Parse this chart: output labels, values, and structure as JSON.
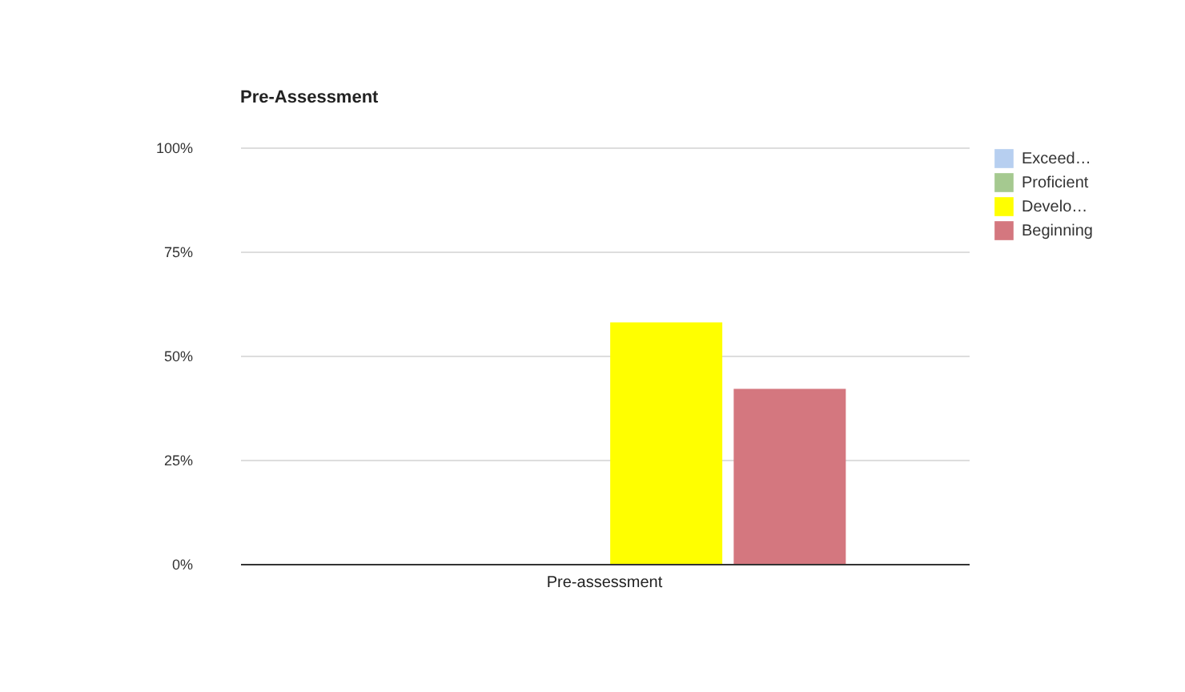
{
  "chart_data": {
    "type": "bar",
    "title": "Pre-Assessment",
    "categories": [
      "Pre-assessment"
    ],
    "series": [
      {
        "name": "Exceed…",
        "color": "#b7cff0",
        "values": [
          0
        ]
      },
      {
        "name": "Proficient",
        "color": "#a5c990",
        "values": [
          0
        ]
      },
      {
        "name": "Develo…",
        "color": "#ffff00",
        "values": [
          58
        ]
      },
      {
        "name": "Beginning",
        "color": "#d4777f",
        "values": [
          42
        ]
      }
    ],
    "ylim": [
      0,
      100
    ],
    "yticks": [
      {
        "value": 0,
        "label": "0%"
      },
      {
        "value": 25,
        "label": "25%"
      },
      {
        "value": 50,
        "label": "50%"
      },
      {
        "value": 75,
        "label": "75%"
      },
      {
        "value": 100,
        "label": "100%"
      }
    ],
    "grid": "y",
    "legend": "top right"
  }
}
